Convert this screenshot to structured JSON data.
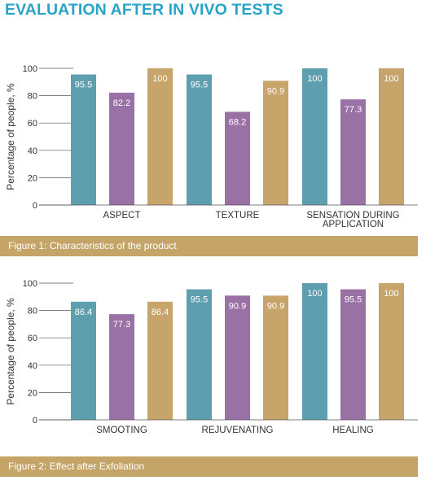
{
  "page": {
    "title": "EVALUATION AFTER IN VIVO TESTS"
  },
  "colors": {
    "title": "#2aa3c9",
    "series1": "#5d9fae",
    "series2": "#9a71a5",
    "series3": "#c7a469",
    "caption_bg": "#c5a468",
    "grid": "#555555"
  },
  "chart_data": [
    {
      "type": "bar",
      "categories": [
        [
          "ASPECT"
        ],
        [
          "TEXTURE"
        ],
        [
          "SENSATION DURING",
          "APPLICATION"
        ]
      ],
      "series": [
        {
          "values": [
            95.5,
            95.5,
            100
          ]
        },
        {
          "values": [
            82.2,
            68.2,
            77.3
          ]
        },
        {
          "values": [
            100,
            90.9,
            100
          ]
        }
      ],
      "value_labels": [
        [
          "95.5",
          "95.5",
          "100"
        ],
        [
          "82.2",
          "68.2",
          "77.3"
        ],
        [
          "100",
          "90.9",
          "100"
        ]
      ],
      "ylabel": "Percentage of people, %",
      "yticks": [
        "0",
        "20",
        "40",
        "60",
        "80",
        "100"
      ],
      "ylim": [
        0,
        100
      ],
      "caption": "Figure 1: Characteristics of the product"
    },
    {
      "type": "bar",
      "categories": [
        [
          "SMOOTING"
        ],
        [
          "REJUVENATING"
        ],
        [
          "HEALING"
        ]
      ],
      "series": [
        {
          "values": [
            86.4,
            95.5,
            100
          ]
        },
        {
          "values": [
            77.3,
            90.9,
            95.5
          ]
        },
        {
          "values": [
            86.4,
            90.9,
            100
          ]
        }
      ],
      "value_labels": [
        [
          "86.4",
          "95.5",
          "100"
        ],
        [
          "77.3",
          "90.9",
          "95.5"
        ],
        [
          "86.4",
          "90.9",
          "100"
        ]
      ],
      "ylabel": "Percentage of people, %",
      "yticks": [
        "0",
        "20",
        "40",
        "60",
        "80",
        "100"
      ],
      "ylim": [
        0,
        100
      ],
      "caption": "Figure 2: Effect after Exfoliation"
    }
  ]
}
